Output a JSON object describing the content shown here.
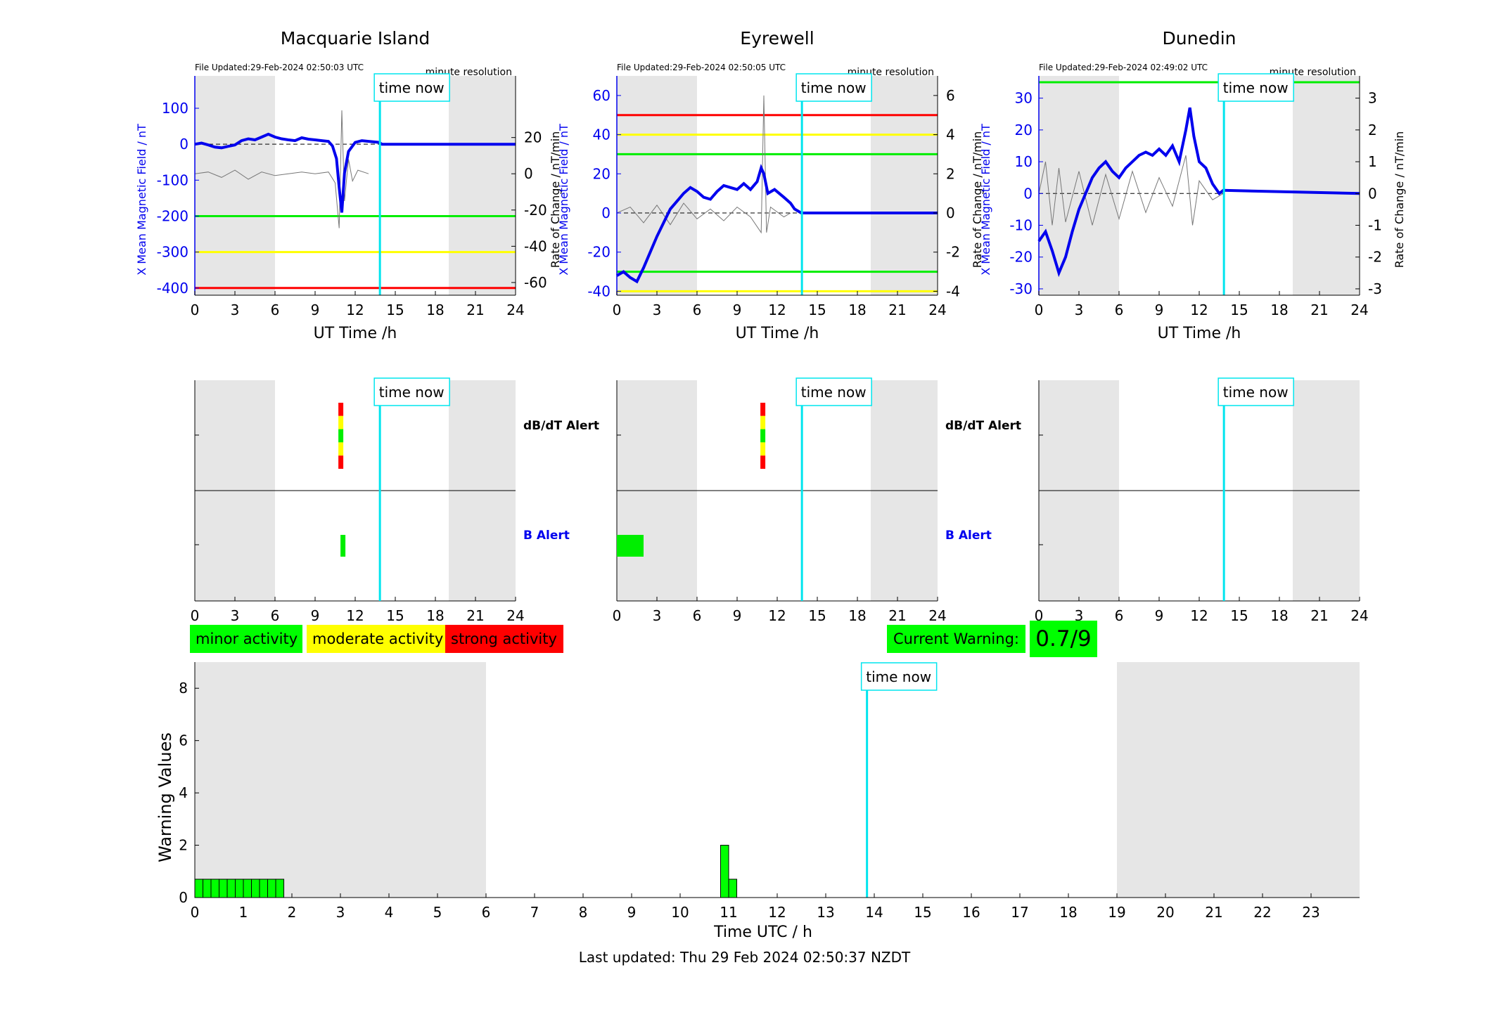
{
  "stations": [
    {
      "name": "Macquarie Island",
      "file_updated": "File Updated:29-Feb-2024 02:50:03 UTC",
      "resolution": "minute resolution",
      "left_ylabel": "X Mean Magnetic Field / nT",
      "right_ylabel": "Rate of Change / nT/min",
      "xlabel": "UT Time /h",
      "left_ylim": [
        -420,
        190
      ],
      "left_yticks": [
        100,
        0,
        -100,
        -200,
        -300,
        -400
      ],
      "right_ylim": [
        -67,
        54
      ],
      "right_yticks": [
        20,
        0,
        -20,
        -40,
        -60
      ],
      "thresholds": [
        {
          "level": "minor",
          "value": -200,
          "color": "#00ee00"
        },
        {
          "level": "moderate",
          "value": -300,
          "color": "#ffff00"
        },
        {
          "level": "strong",
          "value": -400,
          "color": "#ff0000"
        }
      ],
      "field_series": [
        [
          0,
          0
        ],
        [
          0.5,
          3
        ],
        [
          1,
          -2
        ],
        [
          1.5,
          -8
        ],
        [
          2,
          -10
        ],
        [
          2.5,
          -6
        ],
        [
          3,
          -2
        ],
        [
          3.5,
          10
        ],
        [
          4,
          15
        ],
        [
          4.5,
          12
        ],
        [
          5,
          20
        ],
        [
          5.5,
          28
        ],
        [
          6,
          20
        ],
        [
          6.5,
          15
        ],
        [
          7,
          12
        ],
        [
          7.5,
          10
        ],
        [
          8,
          18
        ],
        [
          8.5,
          14
        ],
        [
          9,
          12
        ],
        [
          9.5,
          10
        ],
        [
          10,
          8
        ],
        [
          10.3,
          -5
        ],
        [
          10.6,
          -40
        ],
        [
          10.8,
          -120
        ],
        [
          11,
          -190
        ],
        [
          11.2,
          -80
        ],
        [
          11.5,
          -20
        ],
        [
          12,
          5
        ],
        [
          12.5,
          10
        ],
        [
          13,
          8
        ],
        [
          13.8,
          5
        ],
        [
          14,
          0
        ],
        [
          24,
          0
        ]
      ],
      "rate_series": [
        [
          0,
          0
        ],
        [
          1,
          1
        ],
        [
          2,
          -2
        ],
        [
          3,
          2
        ],
        [
          4,
          -3
        ],
        [
          5,
          1
        ],
        [
          6,
          -1
        ],
        [
          7,
          0
        ],
        [
          8,
          1
        ],
        [
          9,
          0
        ],
        [
          10,
          1
        ],
        [
          10.5,
          -5
        ],
        [
          10.8,
          -30
        ],
        [
          11,
          35
        ],
        [
          11.2,
          -15
        ],
        [
          11.5,
          8
        ],
        [
          11.8,
          -4
        ],
        [
          12.2,
          2
        ],
        [
          13,
          0
        ]
      ]
    },
    {
      "name": "Eyrewell",
      "file_updated": "File Updated:29-Feb-2024 02:50:05 UTC",
      "resolution": "minute resolution",
      "left_ylabel": "X Mean Magnetic Field / nT",
      "right_ylabel": "Rate of Change / nT/min",
      "xlabel": "UT Time /h",
      "left_ylim": [
        -42,
        70
      ],
      "left_yticks": [
        60,
        40,
        20,
        0,
        -20,
        -40
      ],
      "right_ylim": [
        -4.2,
        7
      ],
      "right_yticks": [
        6,
        4,
        2,
        0,
        -2,
        -4
      ],
      "thresholds": [
        {
          "level": "strong",
          "value": 50,
          "color": "#ff0000"
        },
        {
          "level": "moderate",
          "value": 40,
          "color": "#ffff00"
        },
        {
          "level": "minor",
          "value": 30,
          "color": "#00ee00"
        },
        {
          "level": "minor",
          "value": -30,
          "color": "#00ee00"
        },
        {
          "level": "moderate",
          "value": -40,
          "color": "#ffff00"
        }
      ],
      "field_series": [
        [
          0,
          -32
        ],
        [
          0.5,
          -30
        ],
        [
          1,
          -33
        ],
        [
          1.5,
          -35
        ],
        [
          2,
          -28
        ],
        [
          2.5,
          -20
        ],
        [
          3,
          -12
        ],
        [
          3.5,
          -5
        ],
        [
          4,
          2
        ],
        [
          4.5,
          6
        ],
        [
          5,
          10
        ],
        [
          5.5,
          13
        ],
        [
          6,
          11
        ],
        [
          6.5,
          8
        ],
        [
          7,
          7
        ],
        [
          7.5,
          11
        ],
        [
          8,
          14
        ],
        [
          8.5,
          13
        ],
        [
          9,
          12
        ],
        [
          9.5,
          15
        ],
        [
          10,
          12
        ],
        [
          10.5,
          16
        ],
        [
          10.8,
          23
        ],
        [
          11,
          20
        ],
        [
          11.3,
          10
        ],
        [
          11.8,
          12
        ],
        [
          12.5,
          8
        ],
        [
          13,
          5
        ],
        [
          13.3,
          2
        ],
        [
          13.8,
          0
        ],
        [
          24,
          0
        ]
      ],
      "rate_series": [
        [
          0,
          0
        ],
        [
          1,
          0.3
        ],
        [
          2,
          -0.5
        ],
        [
          3,
          0.4
        ],
        [
          4,
          -0.6
        ],
        [
          5,
          0.5
        ],
        [
          6,
          -0.3
        ],
        [
          7,
          0.2
        ],
        [
          8,
          -0.4
        ],
        [
          9,
          0.3
        ],
        [
          10,
          -0.2
        ],
        [
          10.8,
          -1
        ],
        [
          11,
          6
        ],
        [
          11.2,
          -1
        ],
        [
          11.5,
          0.3
        ],
        [
          12.5,
          -0.2
        ],
        [
          13,
          0
        ]
      ]
    },
    {
      "name": "Dunedin",
      "file_updated": "File Updated:29-Feb-2024 02:49:02 UTC",
      "resolution": "minute resolution",
      "left_ylabel": "X Mean Magnetic Field / nT",
      "right_ylabel": "Rate of Change / nT/min",
      "xlabel": "UT Time /h",
      "left_ylim": [
        -32,
        37
      ],
      "left_yticks": [
        30,
        20,
        10,
        0,
        -10,
        -20,
        -30
      ],
      "right_ylim": [
        -3.2,
        3.7
      ],
      "right_yticks": [
        3,
        2,
        1,
        0,
        -1,
        -2,
        -3
      ],
      "thresholds": [
        {
          "level": "minor",
          "value": 35,
          "color": "#00ee00"
        }
      ],
      "field_series": [
        [
          0,
          -15
        ],
        [
          0.5,
          -12
        ],
        [
          1,
          -18
        ],
        [
          1.5,
          -25
        ],
        [
          2,
          -20
        ],
        [
          2.5,
          -12
        ],
        [
          3,
          -5
        ],
        [
          3.5,
          0
        ],
        [
          4,
          5
        ],
        [
          4.5,
          8
        ],
        [
          5,
          10
        ],
        [
          5.5,
          7
        ],
        [
          6,
          5
        ],
        [
          6.5,
          8
        ],
        [
          7,
          10
        ],
        [
          7.5,
          12
        ],
        [
          8,
          13
        ],
        [
          8.5,
          12
        ],
        [
          9,
          14
        ],
        [
          9.5,
          12
        ],
        [
          10,
          15
        ],
        [
          10.5,
          10
        ],
        [
          11,
          20
        ],
        [
          11.3,
          27
        ],
        [
          11.6,
          18
        ],
        [
          12,
          10
        ],
        [
          12.5,
          8
        ],
        [
          13,
          3
        ],
        [
          13.5,
          0
        ],
        [
          13.8,
          1
        ],
        [
          24,
          0
        ]
      ],
      "rate_series": [
        [
          0,
          0
        ],
        [
          0.5,
          1
        ],
        [
          1,
          -1
        ],
        [
          1.5,
          0.8
        ],
        [
          2,
          -0.9
        ],
        [
          3,
          0.7
        ],
        [
          4,
          -1
        ],
        [
          5,
          0.6
        ],
        [
          6,
          -0.8
        ],
        [
          7,
          0.7
        ],
        [
          8,
          -0.6
        ],
        [
          9,
          0.5
        ],
        [
          10,
          -0.4
        ],
        [
          11,
          1.2
        ],
        [
          11.5,
          -1
        ],
        [
          12,
          0.4
        ],
        [
          13,
          -0.2
        ],
        [
          13.8,
          0
        ]
      ]
    }
  ],
  "time_now_label": "time now",
  "time_now_hour": 13.85,
  "night_shading": [
    [
      0,
      6
    ],
    [
      19,
      24
    ]
  ],
  "x_ticks": [
    0,
    3,
    6,
    9,
    12,
    15,
    18,
    21,
    24
  ],
  "alerts": {
    "dbdt_label": "dB/dT Alert",
    "b_label": "B Alert",
    "stations": [
      {
        "name": "Macquarie Island",
        "dbdt_hour": 10.9,
        "dbdt_colors": [
          "#ff0000",
          "#ffff00",
          "#00ee00",
          "#ffff00",
          "#ff0000"
        ],
        "b_bars": [
          {
            "start": 10.9,
            "end": 11.1,
            "color": "#00ee00"
          }
        ]
      },
      {
        "name": "Eyrewell",
        "dbdt_hour": 10.9,
        "dbdt_colors": [
          "#ff0000",
          "#ffff00",
          "#00ee00",
          "#ffff00",
          "#ff0000"
        ],
        "b_bars": [
          {
            "start": 0,
            "end": 2,
            "color": "#00ee00"
          }
        ]
      },
      {
        "name": "Dunedin",
        "dbdt_hour": null,
        "dbdt_colors": [],
        "b_bars": []
      }
    ]
  },
  "legend": [
    {
      "label": "minor activity",
      "color": "#00ff00"
    },
    {
      "label": "moderate activity",
      "color": "#ffff00"
    },
    {
      "label": "strong activity",
      "color": "#ff0000"
    }
  ],
  "current_warning": {
    "label": "Current Warning:",
    "value": "0.7/9"
  },
  "chart_data": {
    "type": "bar",
    "xlabel": "Time UTC / h",
    "ylabel": "Warning Values",
    "xlim": [
      0,
      24
    ],
    "ylim": [
      0,
      9
    ],
    "x_ticks": [
      0,
      1,
      2,
      3,
      4,
      5,
      6,
      7,
      8,
      9,
      10,
      11,
      12,
      13,
      14,
      15,
      16,
      17,
      18,
      19,
      20,
      21,
      22,
      23
    ],
    "y_ticks": [
      0,
      2,
      4,
      6,
      8
    ],
    "bars": [
      {
        "x": 0.0,
        "value": 0.7
      },
      {
        "x": 0.167,
        "value": 0.7
      },
      {
        "x": 0.333,
        "value": 0.7
      },
      {
        "x": 0.5,
        "value": 0.7
      },
      {
        "x": 0.667,
        "value": 0.7
      },
      {
        "x": 0.833,
        "value": 0.7
      },
      {
        "x": 1.0,
        "value": 0.7
      },
      {
        "x": 1.167,
        "value": 0.7
      },
      {
        "x": 1.333,
        "value": 0.7
      },
      {
        "x": 1.5,
        "value": 0.7
      },
      {
        "x": 1.667,
        "value": 0.7
      },
      {
        "x": 10.833,
        "value": 2
      },
      {
        "x": 11.0,
        "value": 0.7
      }
    ],
    "bar_width": 0.167,
    "shaded_ranges": [
      [
        0,
        6
      ],
      [
        19,
        24
      ]
    ],
    "time_now": 13.85
  },
  "last_updated": "Last updated: Thu 29 Feb 2024 02:50:37 NZDT"
}
